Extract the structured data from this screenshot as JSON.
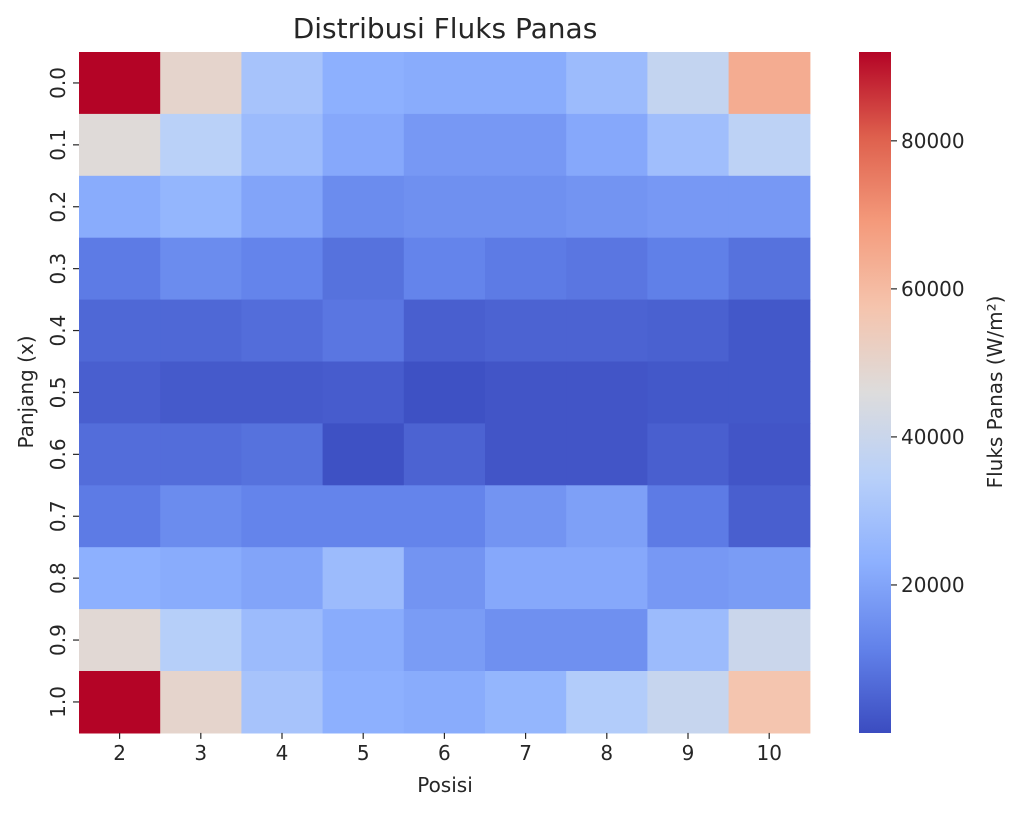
{
  "chart_data": {
    "type": "heatmap",
    "title": "Distribusi Fluks Panas",
    "xlabel": "Posisi",
    "ylabel": "Panjang (x)",
    "colorbar_label": "Fluks Panas (W/m²)",
    "colormap": "coolwarm",
    "vmin": 0,
    "vmax": 92000,
    "colorbar_ticks": [
      "20000",
      "40000",
      "60000",
      "80000"
    ],
    "x_categories": [
      "2",
      "3",
      "4",
      "5",
      "6",
      "7",
      "8",
      "9",
      "10"
    ],
    "y_categories": [
      "0.0",
      "0.1",
      "0.2",
      "0.3",
      "0.4",
      "0.5",
      "0.6",
      "0.7",
      "0.8",
      "0.9",
      "1.0"
    ],
    "values": [
      [
        92000,
        50000,
        30000,
        23000,
        22000,
        22000,
        27000,
        38000,
        64000
      ],
      [
        47000,
        35000,
        27000,
        21000,
        17000,
        17000,
        21000,
        28000,
        36000
      ],
      [
        22000,
        25000,
        20000,
        14000,
        15000,
        15000,
        16000,
        17000,
        17000
      ],
      [
        10000,
        14000,
        12000,
        8000,
        12000,
        10000,
        9000,
        11000,
        8000
      ],
      [
        6000,
        6000,
        7000,
        9000,
        4000,
        5000,
        5000,
        4500,
        2500
      ],
      [
        4000,
        3000,
        3000,
        3500,
        1000,
        2000,
        2000,
        2500,
        2500
      ],
      [
        7000,
        7000,
        8000,
        1000,
        5000,
        2000,
        2000,
        4000,
        2000
      ],
      [
        10000,
        14000,
        12000,
        12000,
        12000,
        16000,
        19000,
        10000,
        4000
      ],
      [
        23000,
        22000,
        20000,
        27000,
        16000,
        21000,
        21000,
        17000,
        18000
      ],
      [
        48000,
        34000,
        27000,
        22000,
        18000,
        15000,
        15000,
        27000,
        40000
      ],
      [
        92000,
        50000,
        30000,
        23000,
        22000,
        25000,
        33000,
        39000,
        57000
      ]
    ]
  }
}
